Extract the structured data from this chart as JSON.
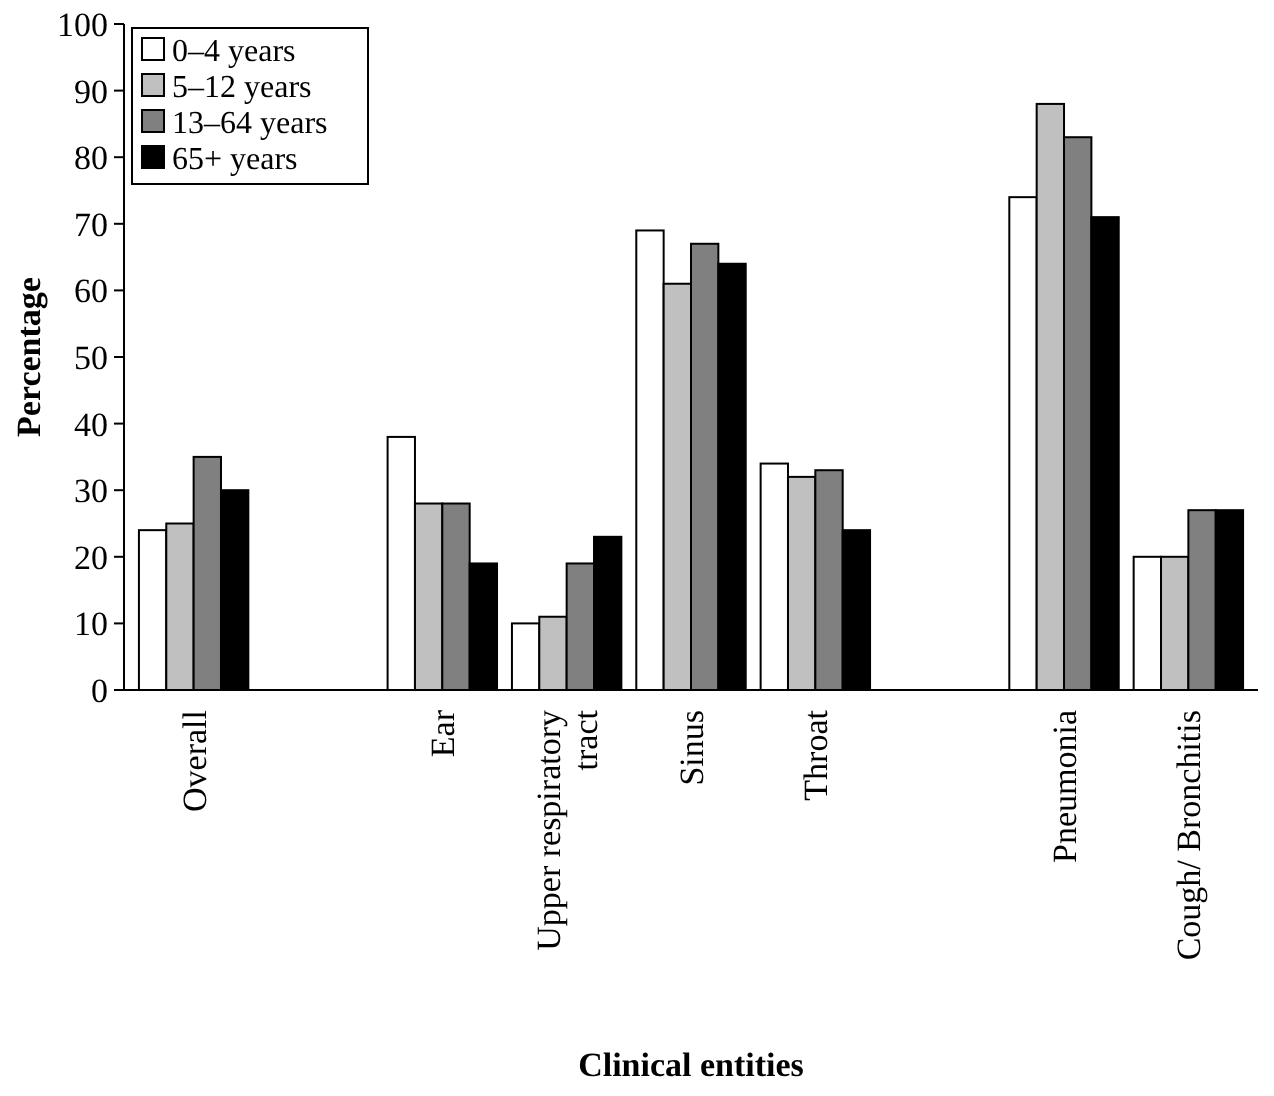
{
  "chart_data": {
    "type": "bar",
    "xlabel": "Clinical entities",
    "ylabel": "Percentage",
    "categories": [
      "Overall",
      null,
      "Ear",
      "Upper respiratory tract",
      "Sinus",
      "Throat",
      null,
      "Pneumonia",
      "Cough/ Bronchitis"
    ],
    "series": [
      {
        "name": "0–4 years",
        "color": "#ffffff",
        "values": [
          24,
          null,
          38,
          10,
          69,
          34,
          null,
          74,
          20
        ]
      },
      {
        "name": "5–12 years",
        "color": "#c0c0c0",
        "values": [
          25,
          null,
          28,
          11,
          61,
          32,
          null,
          88,
          20
        ]
      },
      {
        "name": "13–64 years",
        "color": "#808080",
        "values": [
          35,
          null,
          28,
          19,
          67,
          33,
          null,
          83,
          27
        ]
      },
      {
        "name": "65+ years",
        "color": "#000000",
        "values": [
          30,
          null,
          19,
          23,
          64,
          24,
          null,
          71,
          27
        ]
      }
    ],
    "ylim": [
      0,
      100
    ],
    "yticks": [
      0,
      10,
      20,
      30,
      40,
      50,
      60,
      70,
      80,
      90,
      100
    ],
    "grid": false,
    "legend": "top left"
  }
}
